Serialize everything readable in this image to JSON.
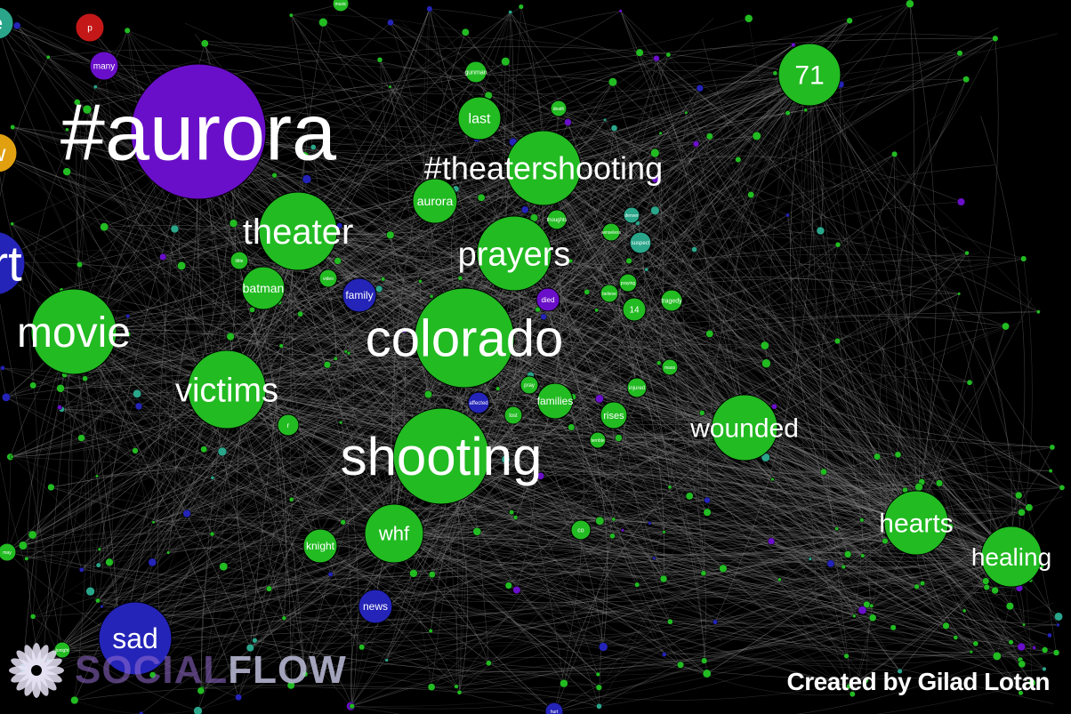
{
  "colors": {
    "background": "#000000",
    "edge": "#8a8a8a",
    "green": "#22bb22",
    "purple": "#6a0fc9",
    "blue": "#2424b8",
    "red": "#c41818",
    "orange": "#e0a010",
    "teal": "#2aa58a",
    "label": "#ffffff"
  },
  "nodes": [
    {
      "id": "aurora-hashtag",
      "label": "#aurora",
      "color": "purple"
    },
    {
      "id": "theatershooting",
      "label": "#theatershooting",
      "color": "green"
    },
    {
      "id": "colorado",
      "label": "colorado",
      "color": "green"
    },
    {
      "id": "shooting",
      "label": "shooting",
      "color": "green"
    },
    {
      "id": "theater",
      "label": "theater",
      "color": "green"
    },
    {
      "id": "prayers",
      "label": "prayers",
      "color": "green"
    },
    {
      "id": "victims",
      "label": "victims",
      "color": "green"
    },
    {
      "id": "movie",
      "label": "movie",
      "color": "green"
    },
    {
      "id": "wounded",
      "label": "wounded",
      "color": "green"
    },
    {
      "id": "hearts",
      "label": "hearts",
      "color": "green"
    },
    {
      "id": "healing",
      "label": "healing",
      "color": "green"
    },
    {
      "id": "n71",
      "label": "71",
      "color": "green"
    },
    {
      "id": "whf",
      "label": "whf",
      "color": "green"
    },
    {
      "id": "sad",
      "label": "sad",
      "color": "blue"
    },
    {
      "id": "last",
      "label": "last",
      "color": "green"
    },
    {
      "id": "aurora",
      "label": "aurora",
      "color": "green"
    },
    {
      "id": "batman",
      "label": "batman",
      "color": "green"
    },
    {
      "id": "family",
      "label": "family",
      "color": "blue"
    },
    {
      "id": "knight",
      "label": "knight",
      "color": "green"
    },
    {
      "id": "news",
      "label": "news",
      "color": "blue"
    },
    {
      "id": "families",
      "label": "families",
      "color": "green"
    },
    {
      "id": "rises",
      "label": "rises",
      "color": "green"
    },
    {
      "id": "many",
      "label": "many",
      "color": "purple"
    },
    {
      "id": "p",
      "label": "p",
      "color": "red"
    },
    {
      "id": "died",
      "label": "died",
      "color": "purple"
    },
    {
      "id": "n14",
      "label": "14",
      "color": "green"
    },
    {
      "id": "tragedy",
      "label": "tragedy",
      "color": "green"
    },
    {
      "id": "gunman",
      "label": "gunman",
      "color": "green"
    },
    {
      "id": "thoughts",
      "label": "thoughts",
      "color": "green"
    },
    {
      "id": "affected",
      "label": "affected",
      "color": "blue"
    },
    {
      "id": "injured",
      "label": "injured",
      "color": "green"
    },
    {
      "id": "suspect",
      "label": "suspect",
      "color": "teal"
    },
    {
      "id": "senseless",
      "label": "senseless",
      "color": "green"
    },
    {
      "id": "praying",
      "label": "praying",
      "color": "green"
    },
    {
      "id": "believe",
      "label": "believe",
      "color": "green"
    },
    {
      "id": "denver",
      "label": "denver",
      "color": "teal"
    },
    {
      "id": "lost",
      "label": "lost",
      "color": "green"
    },
    {
      "id": "pray",
      "label": "pray",
      "color": "green"
    },
    {
      "id": "mass",
      "label": "mass",
      "color": "green"
    },
    {
      "id": "terrible",
      "label": "terrible",
      "color": "green"
    },
    {
      "id": "death",
      "label": "death",
      "color": "green"
    },
    {
      "id": "video",
      "label": "video",
      "color": "green"
    },
    {
      "id": "r",
      "label": "r",
      "color": "green"
    },
    {
      "id": "co",
      "label": "co",
      "color": "green"
    },
    {
      "id": "music",
      "label": "music",
      "color": "green"
    },
    {
      "id": "may",
      "label": "may",
      "color": "green"
    },
    {
      "id": "tonight",
      "label": "tonight",
      "color": "green"
    },
    {
      "id": "art-partial",
      "label": "art",
      "color": "blue"
    },
    {
      "id": "w-partial",
      "label": "w",
      "color": "orange"
    },
    {
      "id": "e-partial",
      "label": "e",
      "color": "teal"
    },
    {
      "id": "little",
      "label": "little",
      "color": "green"
    },
    {
      "id": "hurt",
      "label": "hurt",
      "color": "blue"
    }
  ],
  "logo": {
    "part1": "SOCIAL",
    "part2": "FLOW"
  },
  "credit": "Created by Gilad Lotan"
}
